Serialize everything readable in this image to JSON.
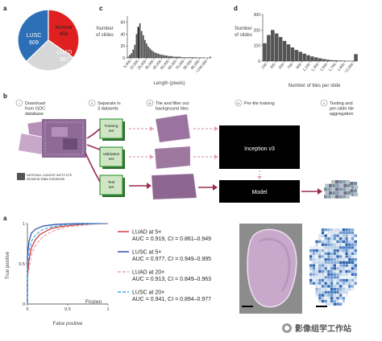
{
  "panel_labels": {
    "a1": "a",
    "c": "c",
    "d": "d",
    "b": "b",
    "a2": "a"
  },
  "pie": {
    "slices": [
      {
        "name": "LUSC",
        "value": 609,
        "color": "#2c6fb7",
        "text_color": "#ffffff"
      },
      {
        "name": "LUAD",
        "value": 567,
        "color": "#e02020",
        "text_color": "#ffffff"
      },
      {
        "name": "Normal",
        "value": 459,
        "color": "#d7d7d7",
        "text_color": "#222222"
      }
    ],
    "labels": [
      {
        "line1": "Normal",
        "line2": "459"
      },
      {
        "line1": "LUSC",
        "line2": "609"
      },
      {
        "line1": "LUAD",
        "line2": "567"
      }
    ]
  },
  "chart_data": [
    {
      "type": "bar",
      "panel": "c",
      "ylabel_lines": [
        "Number",
        "of slides"
      ],
      "xlabel": "Length (pixels)",
      "ytick_labels": [
        "0",
        "20",
        "40",
        "60"
      ],
      "ylim": [
        0,
        70
      ],
      "xtick_labels": [
        "5,000",
        "15,000",
        "25,000",
        "35,000",
        "45,000",
        "55,000",
        "65,000",
        "75,000",
        "85,000",
        "95,000",
        ">100,000"
      ],
      "values": [
        2,
        5,
        8,
        14,
        22,
        40,
        52,
        58,
        45,
        38,
        30,
        24,
        19,
        16,
        13,
        11,
        9,
        8,
        7,
        6,
        5,
        5,
        4,
        4,
        3,
        3,
        3,
        2,
        2,
        2,
        2,
        2,
        1,
        1,
        1,
        1,
        1,
        1,
        1,
        1,
        1,
        1,
        0,
        1,
        0,
        1,
        0,
        0,
        0,
        2
      ],
      "highlight_index": 6,
      "bar_color": "#4a4a4a",
      "highlight_color": "#000000"
    },
    {
      "type": "bar",
      "panel": "d",
      "ylabel_lines": [
        "Number",
        "of slides"
      ],
      "xlabel": "Number of tiles per slide",
      "ytick_labels": [
        "0",
        "100",
        "200",
        "300"
      ],
      "ylim": [
        0,
        300
      ],
      "xtick_labels": [
        "100",
        "300",
        "500",
        "700",
        "900",
        "1,100",
        "1,300",
        "1,500",
        "1,700",
        "1,900",
        ">2,000"
      ],
      "values": [
        115,
        168,
        200,
        178,
        155,
        130,
        108,
        88,
        72,
        60,
        48,
        38,
        30,
        24,
        18,
        13,
        9,
        6,
        5,
        4,
        3,
        2,
        2,
        45
      ],
      "bar_color": "#555555"
    },
    {
      "type": "line",
      "panel": "roc",
      "xlabel": "False positive",
      "ylabel": "True positive",
      "xtick_labels": [
        "0",
        "0.5",
        "1"
      ],
      "ytick_labels": [
        "0",
        "0.5",
        "1"
      ],
      "xlim": [
        0,
        1
      ],
      "ylim": [
        0,
        1
      ],
      "annotation": "Frozen",
      "series": [
        {
          "name": "LUAD at 5×",
          "color": "#d23030",
          "dash": "",
          "points": [
            [
              0,
              0
            ],
            [
              0,
              0.35
            ],
            [
              0.02,
              0.55
            ],
            [
              0.05,
              0.7
            ],
            [
              0.1,
              0.8
            ],
            [
              0.15,
              0.86
            ],
            [
              0.22,
              0.9
            ],
            [
              0.3,
              0.94
            ],
            [
              0.4,
              0.96
            ],
            [
              0.55,
              0.98
            ],
            [
              0.7,
              0.99
            ],
            [
              1,
              1
            ]
          ]
        },
        {
          "name": "LUSC at 5×",
          "color": "#2446a8",
          "dash": "",
          "points": [
            [
              0,
              0
            ],
            [
              0,
              0.6
            ],
            [
              0.02,
              0.78
            ],
            [
              0.05,
              0.88
            ],
            [
              0.1,
              0.93
            ],
            [
              0.2,
              0.97
            ],
            [
              0.35,
              0.99
            ],
            [
              0.6,
              1
            ],
            [
              1,
              1
            ]
          ]
        },
        {
          "name": "LUAD at 20×",
          "color": "#e8a0b0",
          "dash": "4 2",
          "points": [
            [
              0,
              0
            ],
            [
              0,
              0.3
            ],
            [
              0.03,
              0.5
            ],
            [
              0.06,
              0.65
            ],
            [
              0.12,
              0.76
            ],
            [
              0.2,
              0.84
            ],
            [
              0.3,
              0.9
            ],
            [
              0.45,
              0.95
            ],
            [
              0.6,
              0.97
            ],
            [
              0.8,
              0.99
            ],
            [
              1,
              1
            ]
          ]
        },
        {
          "name": "LUSC at 20×",
          "color": "#38b0e0",
          "dash": "4 2",
          "points": [
            [
              0,
              0
            ],
            [
              0,
              0.45
            ],
            [
              0.02,
              0.65
            ],
            [
              0.05,
              0.78
            ],
            [
              0.1,
              0.86
            ],
            [
              0.18,
              0.92
            ],
            [
              0.3,
              0.96
            ],
            [
              0.5,
              0.99
            ],
            [
              1,
              1
            ]
          ]
        }
      ]
    }
  ],
  "legend": [
    {
      "name": "LUAD at 5×",
      "auc": "AUC = 0.919, CI = 0.861–0.949"
    },
    {
      "name": "LUSC at 5×",
      "auc": "AUC = 0.977, CI = 0.949–0.995"
    },
    {
      "name": "LUAD at 20×",
      "auc": "AUC = 0.913, CI = 0.849–0.963"
    },
    {
      "name": "LUSC at 20×",
      "auc": "AUC = 0.941, CI = 0.894–0.977"
    }
  ],
  "workflow": {
    "steps": [
      {
        "num": "i",
        "lines": [
          "Download",
          "from GDC",
          "database"
        ]
      },
      {
        "num": "ii",
        "lines": [
          "Separate in",
          "3 datasets"
        ]
      },
      {
        "num": "iii",
        "lines": [
          "Tile and filter out",
          "background tiles"
        ]
      },
      {
        "num": "iv",
        "lines": [
          "Per-tile training"
        ]
      },
      {
        "num": "v",
        "lines": [
          "Testing and",
          "per-slide tile",
          "aggregation"
        ]
      }
    ],
    "sets": [
      {
        "lines": [
          "Training",
          "set"
        ]
      },
      {
        "lines": [
          "Validation",
          "set"
        ]
      },
      {
        "lines": [
          "Test",
          "set"
        ]
      }
    ],
    "gdc_lines": [
      "NATIONAL CANCER INSTITUTE",
      "Genomic Data Commons"
    ],
    "boxes": {
      "inception": "Inception v3",
      "model": "Model"
    }
  },
  "watermark": "影像组学工作站",
  "colors": {
    "arrow": "#9b2a52",
    "pink_dash": "#e8a0b8",
    "tissue": "#a27aa6",
    "green_set": "#3e9a3e"
  }
}
